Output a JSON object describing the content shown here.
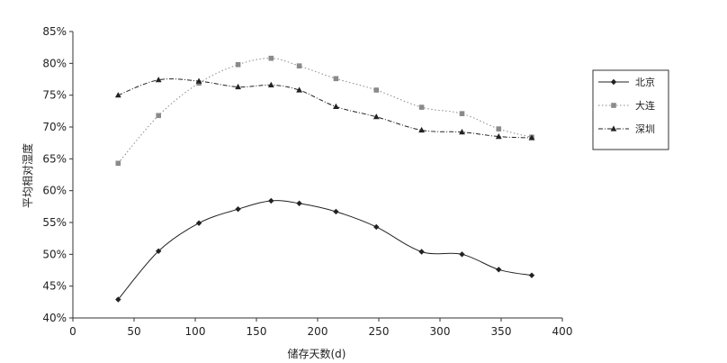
{
  "chart_data": {
    "type": "line",
    "title": "",
    "xlabel": "储存天数(d)",
    "ylabel": "平均相对湿度",
    "xlim": [
      0,
      400
    ],
    "ylim": [
      40,
      85
    ],
    "x_ticks": [
      "0",
      "50",
      "100",
      "150",
      "200",
      "250",
      "300",
      "350",
      "400"
    ],
    "y_ticks": [
      "40%",
      "45%",
      "50%",
      "55%",
      "60%",
      "65%",
      "70%",
      "75%",
      "80%",
      "85%"
    ],
    "grid": false,
    "legend_position": "right",
    "series": [
      {
        "name": "北京",
        "marker": "diamond",
        "line": "solid",
        "color": "#222222",
        "points": [
          [
            37,
            42.9
          ],
          [
            70,
            50.5
          ],
          [
            103,
            54.9
          ],
          [
            135,
            57.1
          ],
          [
            162,
            58.4
          ],
          [
            185,
            58.0
          ],
          [
            215,
            56.7
          ],
          [
            248,
            54.3
          ],
          [
            285,
            50.4
          ],
          [
            318,
            50.0
          ],
          [
            348,
            47.6
          ],
          [
            375,
            46.7
          ]
        ]
      },
      {
        "name": "大连",
        "marker": "square",
        "line": "dotted",
        "color": "#8a8a8a",
        "points": [
          [
            37,
            64.3
          ],
          [
            70,
            71.8
          ],
          [
            103,
            76.9
          ],
          [
            135,
            79.8
          ],
          [
            162,
            80.8
          ],
          [
            185,
            79.6
          ],
          [
            215,
            77.6
          ],
          [
            248,
            75.8
          ],
          [
            285,
            73.1
          ],
          [
            318,
            72.1
          ],
          [
            348,
            69.7
          ],
          [
            375,
            68.4
          ]
        ]
      },
      {
        "name": "深圳",
        "marker": "triangle",
        "line": "dashdot",
        "color": "#222222",
        "points": [
          [
            37,
            75.0
          ],
          [
            70,
            77.4
          ],
          [
            103,
            77.2
          ],
          [
            135,
            76.3
          ],
          [
            162,
            76.6
          ],
          [
            185,
            75.8
          ],
          [
            215,
            73.2
          ],
          [
            248,
            71.6
          ],
          [
            285,
            69.5
          ],
          [
            318,
            69.2
          ],
          [
            348,
            68.5
          ],
          [
            375,
            68.3
          ]
        ]
      }
    ]
  }
}
